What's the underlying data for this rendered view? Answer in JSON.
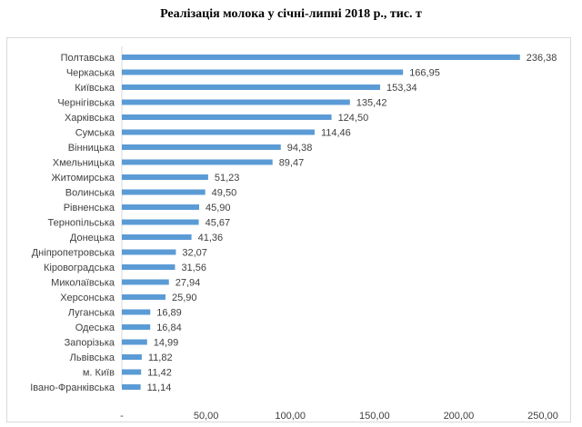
{
  "title": "Реалізація молока у січні-липні 2018 р., тис. т",
  "chart_data": {
    "type": "bar",
    "orientation": "horizontal",
    "title": "Реалізація молока у січні-липні 2018 р., тис. т",
    "categories": [
      "Полтавська",
      "Черкаська",
      "Київська",
      "Чернігівська",
      "Харківська",
      "Сумська",
      "Вінницька",
      "Хмельницька",
      "Житомирська",
      "Волинська",
      "Рівненська",
      "Тернопільська",
      "Донецька",
      "Дніпропетровська",
      "Кіровоградська",
      "Миколаївська",
      "Херсонська",
      "Луганська",
      "Одеська",
      "Запорізька",
      "Львівська",
      "м. Київ",
      "Івано-Франківська"
    ],
    "values": [
      236.38,
      166.95,
      153.34,
      135.42,
      124.5,
      114.46,
      94.38,
      89.47,
      51.23,
      49.5,
      45.9,
      45.67,
      41.36,
      32.07,
      31.56,
      27.94,
      25.9,
      16.89,
      16.84,
      14.99,
      11.82,
      11.42,
      11.14
    ],
    "value_labels": [
      "236,38",
      "166,95",
      "153,34",
      "135,42",
      "124,50",
      "114,46",
      "94,38",
      "89,47",
      "51,23",
      "49,50",
      "45,90",
      "45,67",
      "41,36",
      "32,07",
      "31,56",
      "27,94",
      "25,90",
      "16,89",
      "16,84",
      "14,99",
      "11,82",
      "11,42",
      "11,14"
    ],
    "x_ticks": [
      0,
      50,
      100,
      150,
      200,
      250
    ],
    "x_tick_labels": [
      "-",
      "50,00",
      "100,00",
      "150,00",
      "200,00",
      "250,00"
    ],
    "xlim": [
      0,
      250
    ],
    "xlabel": "",
    "ylabel": "",
    "grid": false,
    "legend": "none",
    "bar_color": "#5b9bd5"
  }
}
